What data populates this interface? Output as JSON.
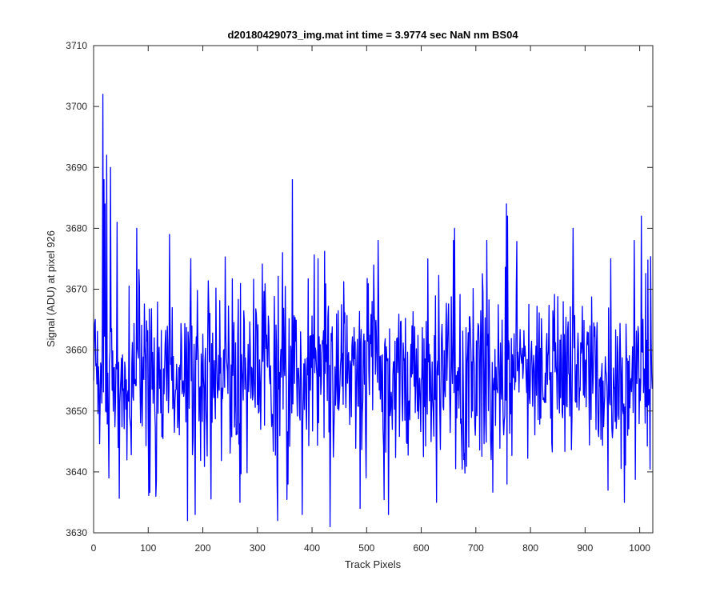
{
  "chart_data": {
    "type": "line",
    "title": "d20180429073_img.mat int time = 3.9774 sec  NaN nm BS04",
    "xlabel": "Track Pixels",
    "ylabel": "Signal (ADU) at pixel 926",
    "xlim": [
      0,
      1024
    ],
    "ylim": [
      3630,
      3710
    ],
    "xticks": [
      0,
      100,
      200,
      300,
      400,
      500,
      600,
      700,
      800,
      900,
      1000
    ],
    "yticks": [
      3630,
      3640,
      3650,
      3660,
      3670,
      3680,
      3690,
      3700,
      3710
    ],
    "grid": false,
    "series": [
      {
        "color": "#0000ff",
        "seed": 926,
        "n_points": 1024,
        "mean": 3656,
        "noise_sd": 7.5,
        "noise_clip": [
          3633,
          3678
        ],
        "x": [
          17,
          19,
          21,
          24,
          28,
          31,
          43,
          45,
          79,
          114,
          139,
          172,
          178,
          186,
          268,
          337,
          346,
          356,
          364,
          382,
          411,
          433,
          488,
          628,
          659,
          661,
          720,
          756,
          757,
          758,
          878,
          942,
          947,
          972,
          990,
          1003,
          1010
        ],
        "y": [
          3702,
          3688,
          3684,
          3692,
          3639,
          3690,
          3681,
          3644,
          3680,
          3636,
          3679,
          3632,
          3675,
          3633,
          3635,
          3632,
          3676,
          3638,
          3688,
          3633,
          3675,
          3631,
          3634,
          3635,
          3678,
          3680,
          3678,
          3684,
          3638,
          3682,
          3680,
          3637,
          3675,
          3635,
          3678,
          3682,
          3648
        ]
      }
    ]
  }
}
